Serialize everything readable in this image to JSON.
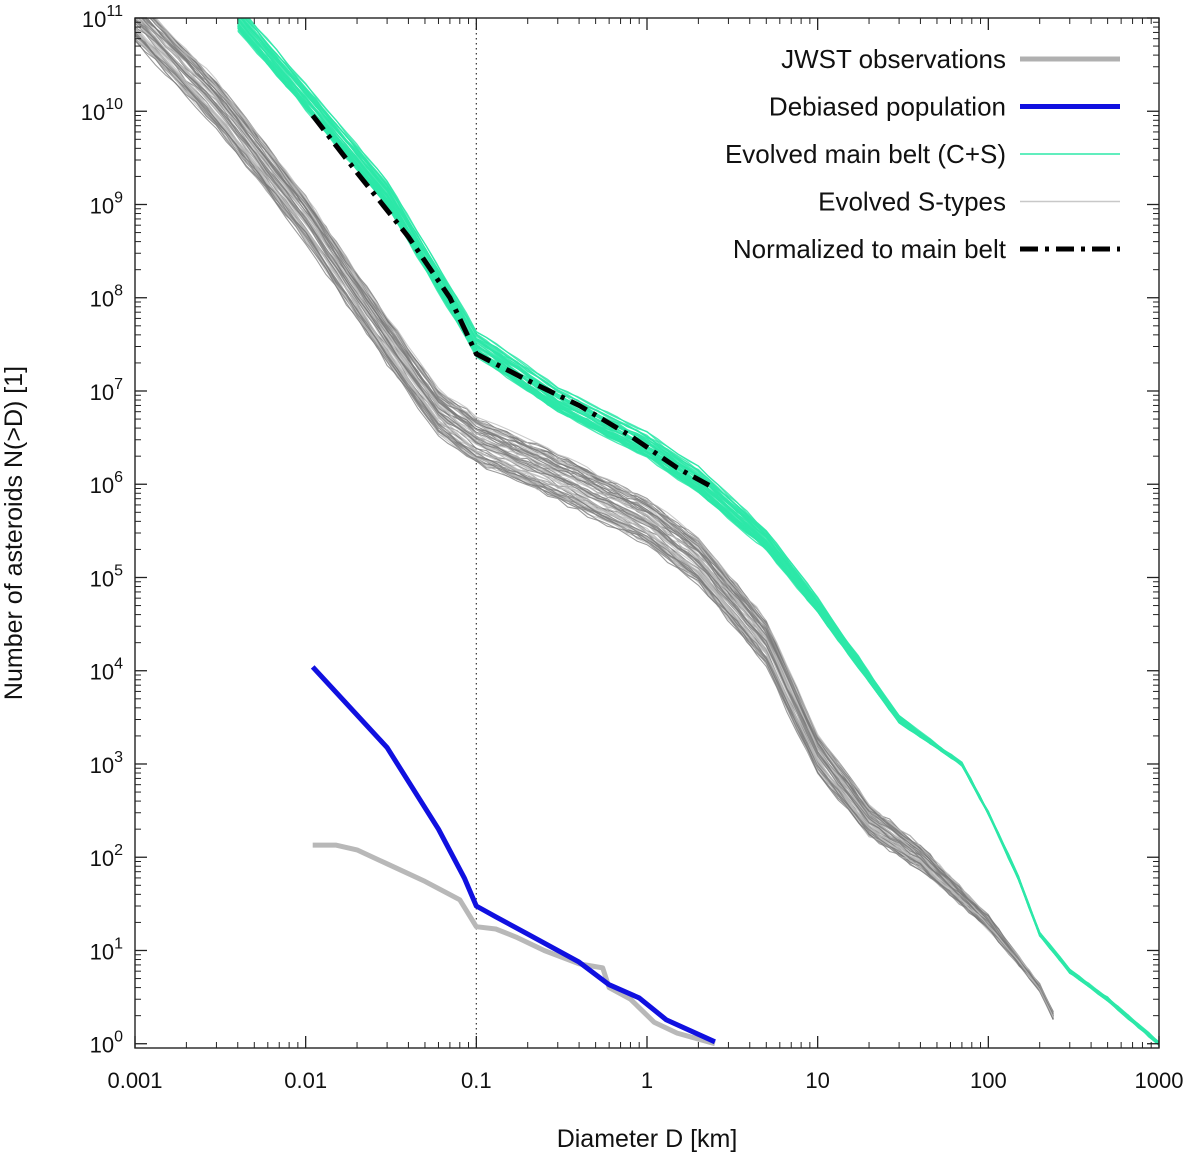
{
  "chart_data": {
    "type": "line",
    "title": "",
    "xlabel": "Diameter D [km]",
    "ylabel": "Number of asteroids N(>D) [1]",
    "xscale": "log",
    "yscale": "log",
    "xlim": [
      0.001,
      1000
    ],
    "ylim": [
      0.9,
      100000000000.0
    ],
    "x_ticks": [
      {
        "value": 0.001,
        "label": "0.001"
      },
      {
        "value": 0.01,
        "label": "0.01"
      },
      {
        "value": 0.1,
        "label": "0.1"
      },
      {
        "value": 1,
        "label": "1"
      },
      {
        "value": 10,
        "label": "10"
      },
      {
        "value": 100,
        "label": "100"
      },
      {
        "value": 1000,
        "label": "1000"
      }
    ],
    "y_ticks": [
      {
        "value": 1,
        "base": "10",
        "exp": "0"
      },
      {
        "value": 10,
        "base": "10",
        "exp": "1"
      },
      {
        "value": 100,
        "base": "10",
        "exp": "2"
      },
      {
        "value": 1000,
        "base": "10",
        "exp": "3"
      },
      {
        "value": 10000,
        "base": "10",
        "exp": "4"
      },
      {
        "value": 100000,
        "base": "10",
        "exp": "5"
      },
      {
        "value": 1000000,
        "base": "10",
        "exp": "6"
      },
      {
        "value": 10000000,
        "base": "10",
        "exp": "7"
      },
      {
        "value": 100000000,
        "base": "10",
        "exp": "8"
      },
      {
        "value": 1000000000,
        "base": "10",
        "exp": "9"
      },
      {
        "value": 10000000000,
        "base": "10",
        "exp": "10"
      },
      {
        "value": 100000000000,
        "base": "10",
        "exp": "11"
      }
    ],
    "reference_line": {
      "x": 0.1,
      "style": "dotted"
    },
    "legend_position": "top-right",
    "legend": [
      {
        "label": "JWST observations",
        "color": "#b0b0b0",
        "style": "solid-thick"
      },
      {
        "label": "Debiased population",
        "color": "#1010e0",
        "style": "solid-thick"
      },
      {
        "label": "Evolved main belt (C+S)",
        "color": "#2de8a8",
        "style": "solid-thin"
      },
      {
        "label": "Evolved S-types",
        "color": "#c8c8c8",
        "style": "solid-thin"
      },
      {
        "label": "Normalized to main belt",
        "color": "#000000",
        "style": "dash-dot"
      }
    ],
    "series": [
      {
        "name": "JWST observations",
        "color": "#b8b8b8",
        "x": [
          0.011,
          0.015,
          0.02,
          0.03,
          0.05,
          0.08,
          0.1,
          0.13,
          0.17,
          0.25,
          0.4,
          0.55,
          0.6,
          0.8,
          1.1,
          1.5,
          2.5
        ],
        "y": [
          135,
          135,
          120,
          85,
          55,
          35,
          18,
          17,
          14,
          10,
          7.2,
          6.5,
          4,
          3,
          1.7,
          1.3,
          1.0
        ]
      },
      {
        "name": "Debiased population",
        "color": "#1010e0",
        "x": [
          0.011,
          0.03,
          0.06,
          0.085,
          0.1,
          0.13,
          0.2,
          0.4,
          0.6,
          0.9,
          1.3,
          2.5
        ],
        "y": [
          11000,
          1500,
          200,
          60,
          30,
          23,
          15,
          7.5,
          4.3,
          3.1,
          1.8,
          1.05
        ]
      },
      {
        "name": "Normalized to main belt",
        "color": "#000000",
        "x": [
          0.011,
          0.02,
          0.04,
          0.07,
          0.1,
          0.2,
          0.4,
          0.8,
          1.5,
          2.5
        ],
        "y": [
          9000000000,
          2200000000,
          450000000,
          100000000,
          25000000,
          13000000,
          7000000,
          3300000,
          1500000,
          900000
        ]
      },
      {
        "name": "Evolved main belt (C+S)",
        "color": "#2de8a8",
        "x": [
          0.004,
          0.01,
          0.03,
          0.1,
          0.3,
          1,
          2,
          5,
          10,
          30,
          70,
          100,
          150,
          200,
          300,
          500,
          1000
        ],
        "y": [
          100000000000,
          14000000000,
          1300000000,
          32000000,
          8000000,
          2600000,
          1100000,
          250000,
          50000,
          3000,
          1000,
          300,
          60,
          15,
          6,
          3,
          1
        ]
      },
      {
        "name": "Evolved S-types",
        "color": "#707070",
        "x": [
          0.001,
          0.003,
          0.01,
          0.03,
          0.06,
          0.1,
          0.3,
          1,
          2,
          5,
          10,
          20,
          40,
          100,
          200,
          240
        ],
        "y": [
          100000000000,
          12000000000,
          700000000,
          35000000,
          6000000,
          3000000,
          1200000,
          400000,
          150000,
          20000,
          1300,
          250,
          100,
          20,
          4,
          2
        ]
      }
    ]
  }
}
